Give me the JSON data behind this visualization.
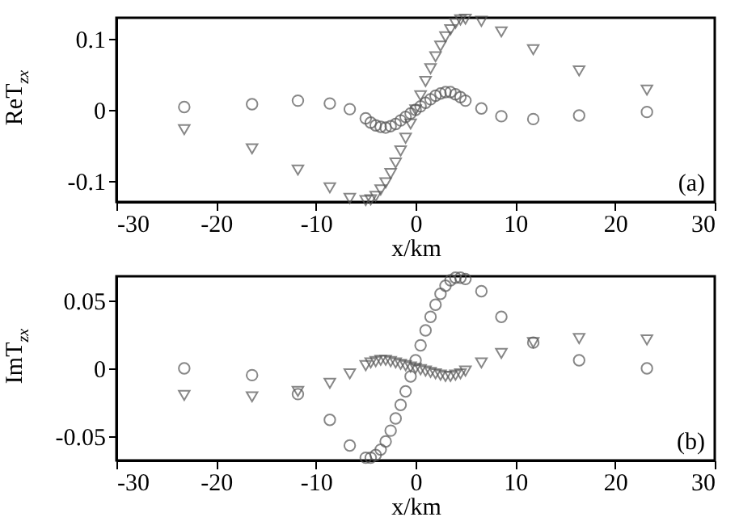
{
  "chart_data": [
    {
      "type": "scatter",
      "xlabel": "x/km",
      "ylabel": "ReT$_{zx}$",
      "annotations": [
        "(a)"
      ],
      "xlim": [
        -30,
        30
      ],
      "xticks": [
        -30,
        -20,
        -10,
        0,
        10,
        20,
        30
      ],
      "ylim": [
        -0.13,
        0.13
      ],
      "yticks": [
        -0.1,
        0,
        0.1
      ],
      "x": [
        -23.2,
        -16.4,
        -11.8,
        -8.6,
        -6.6,
        -5,
        -4.5,
        -4,
        -3.5,
        -3,
        -2.5,
        -2,
        -1.5,
        -1,
        -0.5,
        0,
        0.5,
        1,
        1.5,
        2,
        2.5,
        3,
        3.5,
        4,
        4.5,
        5,
        6.6,
        8.6,
        11.8,
        16.4,
        23.2
      ],
      "series": [
        {
          "color": "#555555",
          "marker": "circle",
          "values": [
            0.004,
            0.008,
            0.013,
            0.009,
            0.001,
            -0.012,
            -0.018,
            -0.022,
            -0.024,
            -0.025,
            -0.023,
            -0.02,
            -0.015,
            -0.01,
            -0.005,
            0,
            0.005,
            0.01,
            0.015,
            0.02,
            0.023,
            0.025,
            0.025,
            0.022,
            0.018,
            0.013,
            0.002,
            -0.009,
            -0.013,
            -0.008,
            -0.003
          ]
        },
        {
          "color": "#555555",
          "marker": "triangle",
          "values": [
            -0.028,
            -0.055,
            -0.085,
            -0.11,
            -0.125,
            -0.128,
            -0.127,
            -0.122,
            -0.113,
            -0.103,
            -0.09,
            -0.075,
            -0.058,
            -0.04,
            -0.02,
            0,
            0.02,
            0.04,
            0.058,
            0.075,
            0.09,
            0.103,
            0.113,
            0.122,
            0.127,
            0.128,
            0.125,
            0.11,
            0.085,
            0.055,
            0.028
          ]
        }
      ]
    },
    {
      "type": "scatter",
      "xlabel": "x/km",
      "ylabel": "ImT$_{zx}$",
      "annotations": [
        "(b)"
      ],
      "xlim": [
        -30,
        30
      ],
      "xticks": [
        -30,
        -20,
        -10,
        0,
        10,
        20,
        30
      ],
      "ylim": [
        -0.068,
        0.068
      ],
      "yticks": [
        -0.05,
        0,
        0.05
      ],
      "x": [
        -23.2,
        -16.4,
        -11.8,
        -8.6,
        -6.6,
        -5,
        -4.5,
        -4,
        -3.5,
        -3,
        -2.5,
        -2,
        -1.5,
        -1,
        -0.5,
        0,
        0.5,
        1,
        1.5,
        2,
        2.5,
        3,
        3.5,
        4,
        4.5,
        5,
        6.6,
        8.6,
        11.8,
        16.4,
        23.2
      ],
      "series": [
        {
          "color": "#555555",
          "marker": "circle",
          "values": [
            0,
            -0.005,
            -0.019,
            -0.038,
            -0.057,
            -0.066,
            -0.066,
            -0.064,
            -0.06,
            -0.054,
            -0.046,
            -0.037,
            -0.027,
            -0.017,
            -0.006,
            0.006,
            0.017,
            0.028,
            0.038,
            0.047,
            0.055,
            0.061,
            0.065,
            0.067,
            0.067,
            0.066,
            0.057,
            0.038,
            0.019,
            0.006,
            0
          ]
        },
        {
          "color": "#555555",
          "marker": "triangle",
          "values": [
            -0.02,
            -0.021,
            -0.017,
            -0.011,
            -0.004,
            0.002,
            0.004,
            0.005,
            0.006,
            0.006,
            0.005,
            0.004,
            0.003,
            0.002,
            0.001,
            0,
            -0.001,
            -0.002,
            -0.003,
            -0.004,
            -0.005,
            -0.006,
            -0.006,
            -0.005,
            -0.004,
            -0.002,
            0.004,
            0.011,
            0.019,
            0.022,
            0.021
          ]
        }
      ]
    }
  ]
}
